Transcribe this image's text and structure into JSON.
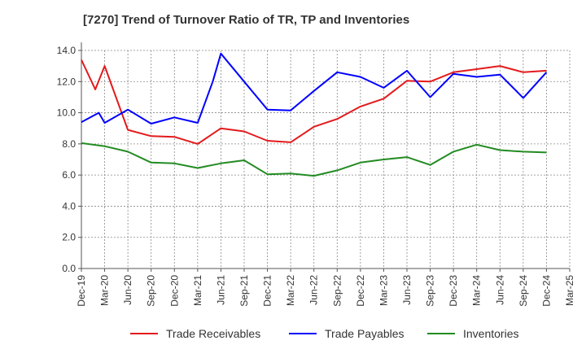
{
  "chart_data": {
    "type": "line",
    "title": "[7270]  Trend of Turnover Ratio of TR, TP and Inventories",
    "xlabel": "",
    "ylabel": "",
    "ylim": [
      0,
      14
    ],
    "yticks": [
      "0.0",
      "2.0",
      "4.0",
      "6.0",
      "8.0",
      "10.0",
      "12.0",
      "14.0"
    ],
    "ytick_values": [
      0,
      2,
      4,
      6,
      8,
      10,
      12,
      14
    ],
    "x": [
      "Dec-19",
      "Mar-20",
      "Jun-20",
      "Sep-20",
      "Dec-20",
      "Mar-21",
      "Jun-21",
      "Sep-21",
      "Dec-21",
      "Mar-22",
      "Jun-22",
      "Sep-22",
      "Dec-22",
      "Mar-23",
      "Jun-23",
      "Sep-23",
      "Dec-23",
      "Mar-24",
      "Jun-24",
      "Sep-24",
      "Dec-24",
      "Mar-25"
    ],
    "grid": "horizontal-dotted",
    "legend_position": "bottom",
    "series": [
      {
        "name": "Trade Receivables",
        "color": "#e31a1c",
        "values": [
          13.4,
          13.0,
          8.9,
          8.5,
          8.45,
          8.0,
          9.0,
          8.8,
          8.2,
          8.1,
          9.1,
          9.6,
          10.4,
          10.9,
          12.05,
          12.0,
          12.6,
          12.8,
          13.0,
          12.6,
          12.7,
          null
        ],
        "extra_points": [
          {
            "x_index": 0.6,
            "value": 11.5
          }
        ]
      },
      {
        "name": "Trade Payables",
        "color": "#0000ff",
        "values": [
          9.4,
          9.35,
          10.2,
          9.3,
          9.7,
          9.35,
          13.8,
          12.0,
          10.2,
          10.15,
          11.4,
          12.6,
          12.3,
          11.6,
          12.7,
          11.0,
          12.5,
          12.3,
          12.45,
          10.95,
          12.6,
          null
        ],
        "extra_points": [
          {
            "x_index": 0.75,
            "value": 10.0
          },
          {
            "x_index": 5.65,
            "value": 12.0
          }
        ]
      },
      {
        "name": "Inventories",
        "color": "#228b22",
        "values": [
          8.05,
          7.85,
          7.5,
          6.8,
          6.75,
          6.45,
          6.75,
          6.95,
          6.05,
          6.1,
          5.95,
          6.3,
          6.8,
          7.0,
          7.15,
          6.65,
          7.5,
          7.95,
          7.6,
          7.5,
          7.45,
          null
        ]
      }
    ]
  }
}
